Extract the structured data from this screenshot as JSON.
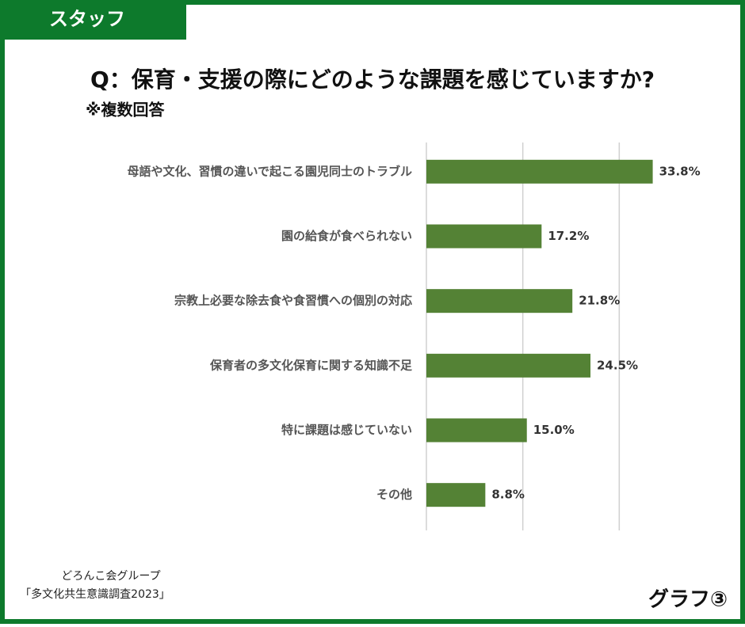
{
  "tab": "スタッフ",
  "source": [
    "どろんこ会グループ",
    "「多文化共生意識調査2023」"
  ],
  "graph_label": "グラフ③",
  "chart_data": {
    "type": "hbar",
    "title": "Q：保育・支援の際にどのような課題を感じていますか?",
    "subtitle": "※複数回答",
    "categories": [
      "母語や文化、習慣の違いで起こる園児同士のトラブル",
      "園の給食が食べられない",
      "宗教上必要な除去食や食習慣への個別の対応",
      "保育者の多文化保育に関する知識不足",
      "特に課題は感じていない",
      "その他"
    ],
    "values": [
      33.8,
      17.2,
      21.8,
      24.5,
      15.0,
      8.8
    ],
    "value_labels": [
      "33.8%",
      "17.2%",
      "21.8%",
      "24.5%",
      "15.0%",
      "8.8%"
    ],
    "color": "#548235",
    "xlim": [
      0,
      43.2
    ],
    "xticks": [
      0,
      14.4,
      28.8
    ],
    "grid": true
  }
}
